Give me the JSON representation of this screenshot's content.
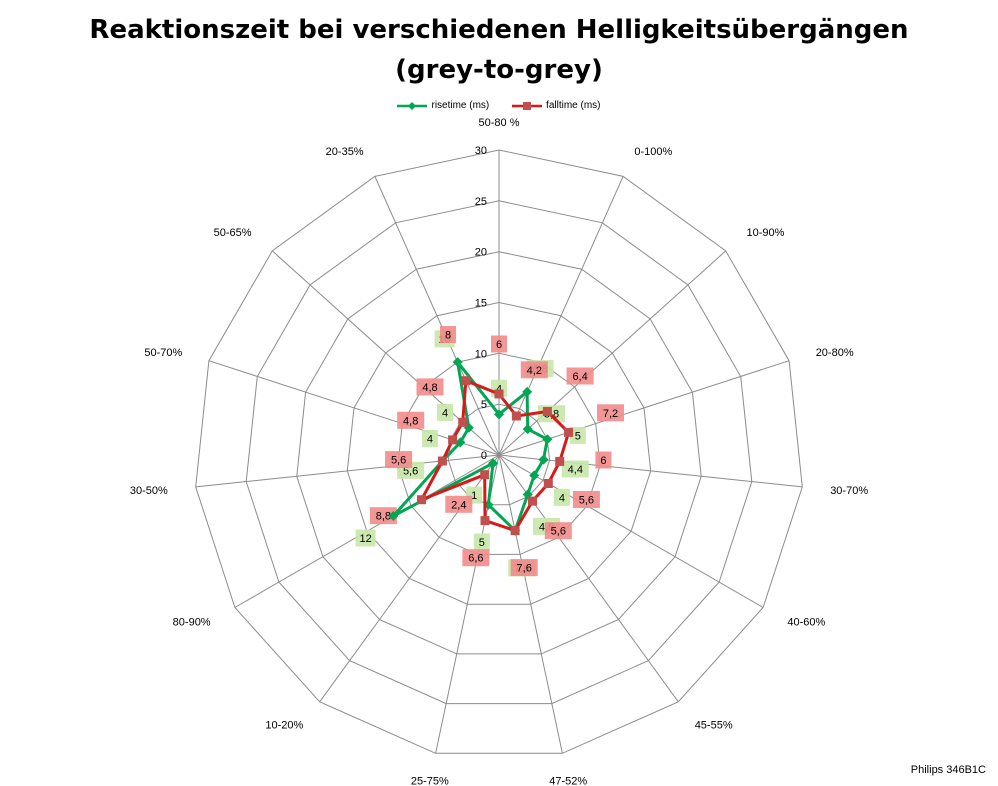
{
  "footer": "Philips 346B1C",
  "chart_data": {
    "type": "radar",
    "title_lines": [
      "Reaktionszeit bei verschiedenen Helligkeitsübergängen",
      "(grey-to-grey)"
    ],
    "categories": [
      "50-80 %",
      "0-100%",
      "10-90%",
      "20-80%",
      "30-70%",
      "40-60%",
      "45-55%",
      "47-52%",
      "25-75%",
      "10-20%",
      "80-90%",
      "30-50%",
      "50-70%",
      "50-65%",
      "20-35%"
    ],
    "rlim": [
      0,
      30
    ],
    "ticks": [
      0,
      5,
      10,
      15,
      20,
      25,
      30
    ],
    "grid": true,
    "legend_position": "top",
    "series": [
      {
        "name": "risetime (ms)",
        "color": "#00a651",
        "marker": "diamond",
        "values": [
          4,
          6.8,
          3.8,
          5,
          4.4,
          4,
          4.8,
          7.6,
          5,
          1,
          12,
          5.6,
          4,
          4,
          10
        ],
        "labels": [
          "4",
          "6,8",
          "3,8",
          "5",
          "4,4",
          "4",
          "4,8",
          "7,6",
          "5",
          "1",
          "12",
          "5,6",
          "4",
          "4",
          "10"
        ]
      },
      {
        "name": "falltime (ms)",
        "color": "#d7191c",
        "marker": "square",
        "values": [
          6,
          4.2,
          6.4,
          7.2,
          6,
          5.6,
          5.6,
          7.6,
          6.6,
          2.4,
          8.8,
          5.6,
          4.8,
          4.8,
          8
        ],
        "labels": [
          "6",
          "4,2",
          "6,4",
          "7,2",
          "6",
          "5,6",
          "5,6",
          "7,6",
          "6,6",
          "2,4",
          "8,8",
          "5,6",
          "4,8",
          "4,8",
          "8"
        ]
      }
    ]
  }
}
